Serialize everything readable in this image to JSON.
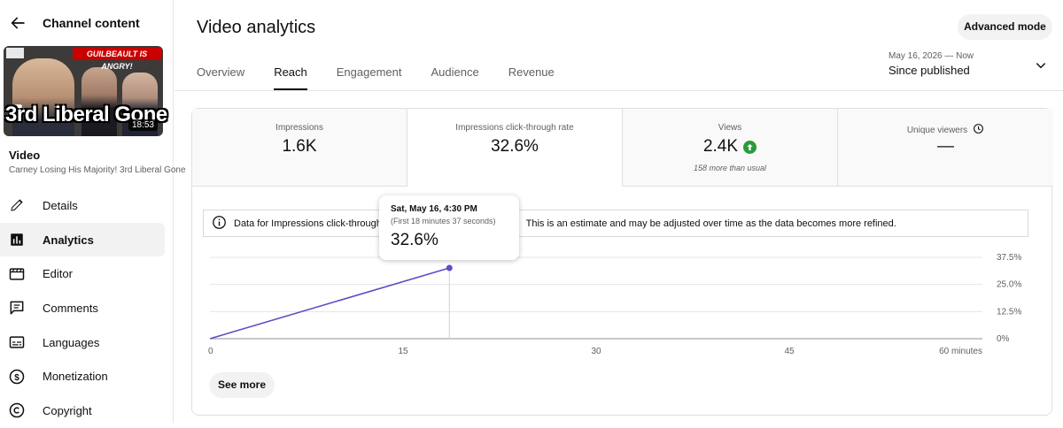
{
  "sidebar": {
    "header_title": "Channel content",
    "thumbnail": {
      "banner": "GUILBEAULT IS ANGRY!",
      "overlay_text": "3rd Liberal Gone",
      "duration": "18:53"
    },
    "video_label": "Video",
    "video_title": "Carney Losing His Majority! 3rd Liberal Gone",
    "items": [
      {
        "label": "Details",
        "icon": "pencil-icon"
      },
      {
        "label": "Analytics",
        "icon": "analytics-icon"
      },
      {
        "label": "Editor",
        "icon": "film-icon"
      },
      {
        "label": "Comments",
        "icon": "comment-icon"
      },
      {
        "label": "Languages",
        "icon": "subtitles-icon"
      },
      {
        "label": "Monetization",
        "icon": "dollar-icon"
      },
      {
        "label": "Copyright",
        "icon": "copyright-icon"
      }
    ],
    "active_item": "Analytics"
  },
  "header": {
    "title": "Video analytics",
    "advanced_button": "Advanced mode",
    "date_range_sub": "May 16, 2026 — Now",
    "date_range_main": "Since published"
  },
  "tabs": [
    {
      "label": "Overview"
    },
    {
      "label": "Reach"
    },
    {
      "label": "Engagement"
    },
    {
      "label": "Audience"
    },
    {
      "label": "Revenue"
    }
  ],
  "active_tab": "Reach",
  "metrics": [
    {
      "label": "Impressions",
      "value": "1.6K",
      "sub": ""
    },
    {
      "label": "Impressions click-through rate",
      "value": "32.6%",
      "sub": ""
    },
    {
      "label": "Views",
      "value": "2.4K",
      "sub": "158 more than usual"
    },
    {
      "label": "Unique viewers",
      "value": "—",
      "sub": ""
    }
  ],
  "notice": {
    "text_before": "Data for Impressions click-through r",
    "text_after": "This is an estimate and may be adjusted over time as the data becomes more refined."
  },
  "tooltip": {
    "date": "Sat, May 16, 4:30 PM",
    "sub": "(First 18 minutes 37 seconds)",
    "value": "32.6%"
  },
  "see_more": "See more",
  "colors": {
    "line": "#5c4fc4",
    "up_badge": "#2a9a3a",
    "accent": "#0f0f0f"
  },
  "chart_data": {
    "type": "line",
    "title": "",
    "xlabel": "",
    "ylabel": "",
    "x_ticks": [
      "0",
      "15",
      "30",
      "45",
      "60 minutes"
    ],
    "y_ticks": [
      "0%",
      "12.5%",
      "25.0%",
      "37.5%"
    ],
    "xlim": [
      0,
      60
    ],
    "ylim": [
      0,
      37.5
    ],
    "y_axis_side": "right",
    "grid": true,
    "series": [
      {
        "x": [
          0,
          18.6
        ],
        "y": [
          0,
          32.6
        ]
      }
    ]
  }
}
